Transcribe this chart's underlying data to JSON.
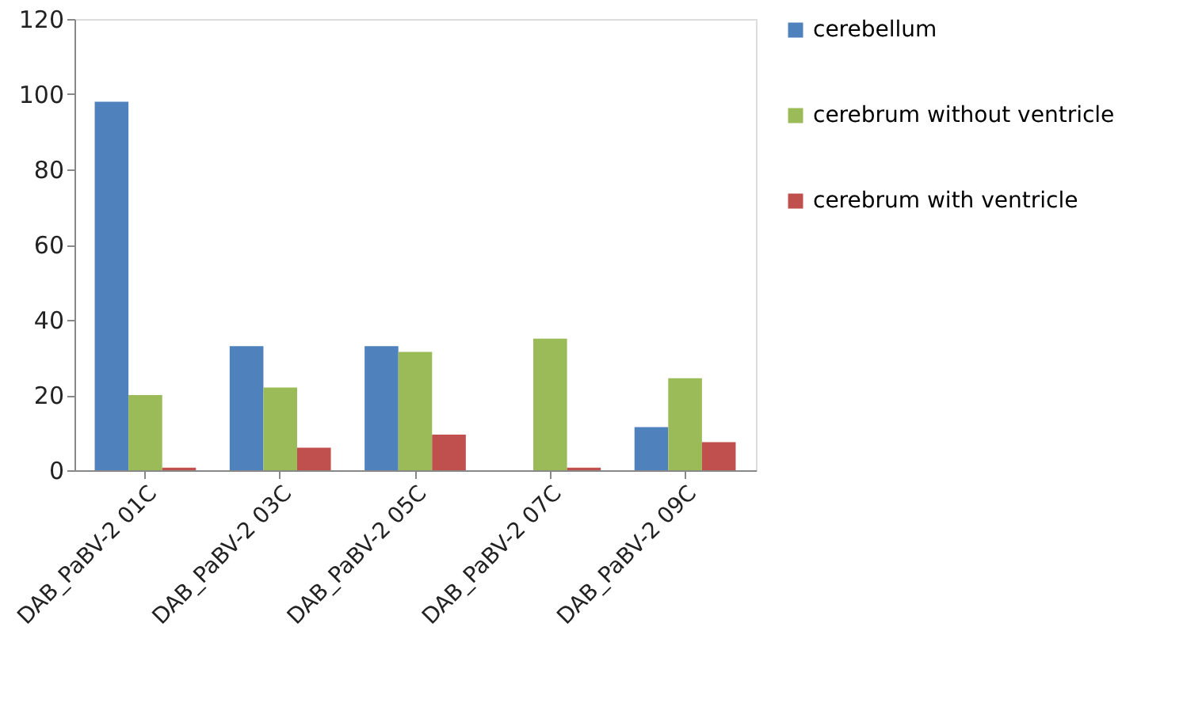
{
  "chart_data": {
    "type": "bar",
    "categories": [
      "DAB_PaBV-2  01C",
      "DAB_PaBV-2  03C",
      "DAB_PaBV-2  05C",
      "DAB_PaBV-2  07C",
      "DAB_PaBV-2  09C"
    ],
    "series": [
      {
        "name": "cerebellum",
        "color": "#4f81bd",
        "values": [
          98,
          33,
          33,
          0,
          11.5
        ]
      },
      {
        "name": "cerebrum without ventricle",
        "color": "#9bbb59",
        "values": [
          20,
          22,
          31.5,
          35,
          24.5
        ]
      },
      {
        "name": "cerebrum with ventricle",
        "color": "#c0504d",
        "values": [
          0.7,
          6,
          9.5,
          0.7,
          7.5
        ]
      }
    ],
    "ylim": [
      0,
      120
    ],
    "yticks": [
      0,
      20,
      40,
      60,
      80,
      100,
      120
    ],
    "grid": false,
    "legend": "right"
  }
}
